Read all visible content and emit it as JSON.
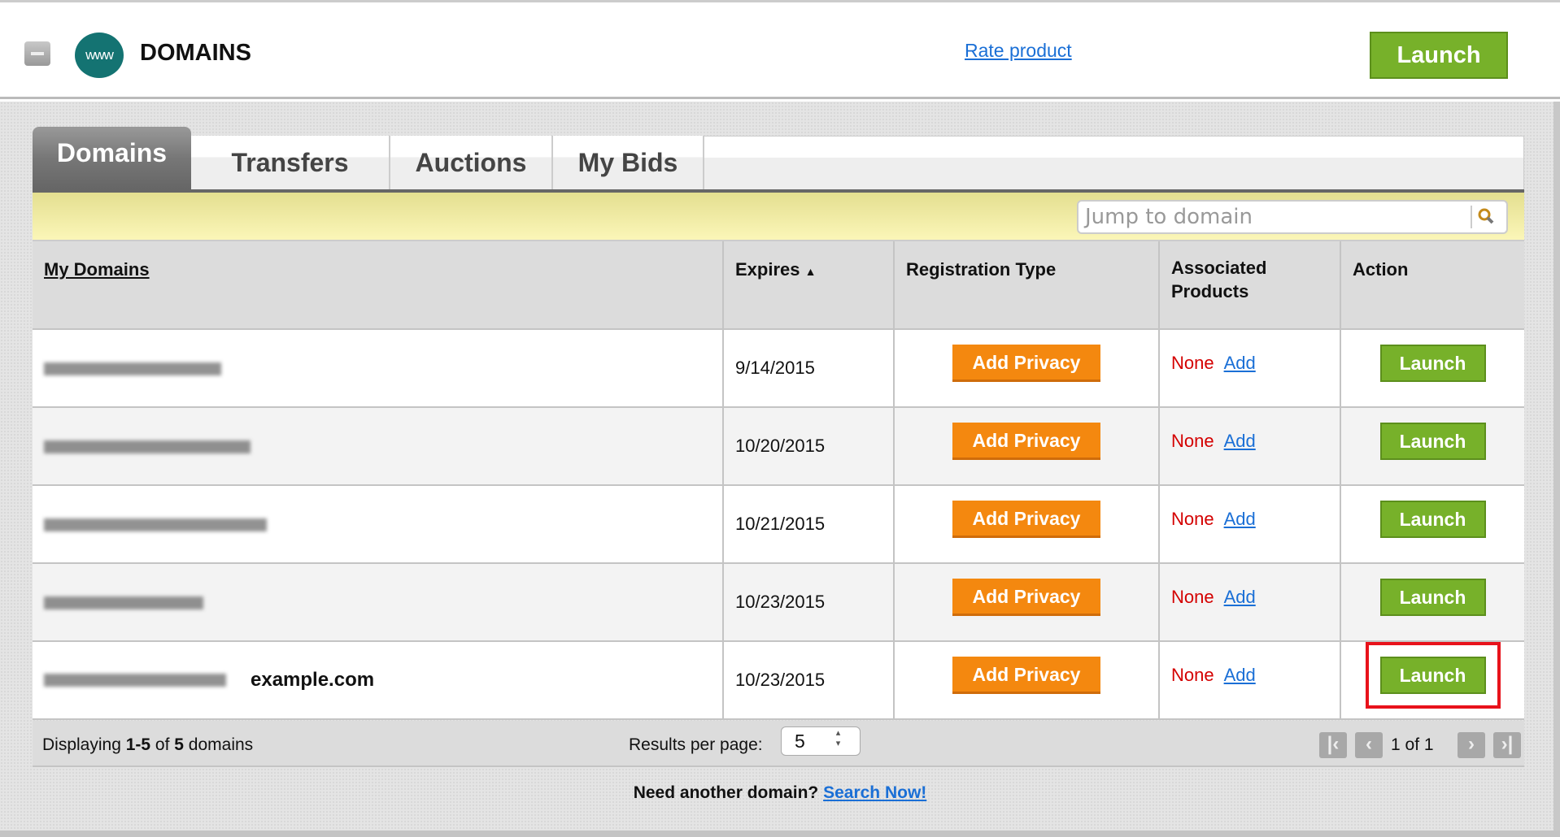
{
  "header": {
    "title": "DOMAINS",
    "logo_text": "www",
    "rate_link": "Rate product",
    "launch": "Launch"
  },
  "tabs": [
    {
      "label": "Domains",
      "active": true
    },
    {
      "label": "Transfers"
    },
    {
      "label": "Auctions"
    },
    {
      "label": "My Bids"
    }
  ],
  "search": {
    "placeholder": "Jump to domain"
  },
  "table": {
    "columns": [
      "My Domains",
      "Expires",
      "Registration Type",
      "Associated Products",
      "Action"
    ],
    "sort_indicator": "▲",
    "rows": [
      {
        "domain": "",
        "expires": "9/14/2015",
        "registration": "Add Privacy",
        "products": "None",
        "add": "Add",
        "action": "Launch"
      },
      {
        "domain": "",
        "expires": "10/20/2015",
        "registration": "Add Privacy",
        "products": "None",
        "add": "Add",
        "action": "Launch"
      },
      {
        "domain": "",
        "expires": "10/21/2015",
        "registration": "Add Privacy",
        "products": "None",
        "add": "Add",
        "action": "Launch"
      },
      {
        "domain": "",
        "expires": "10/23/2015",
        "registration": "Add Privacy",
        "products": "None",
        "add": "Add",
        "action": "Launch"
      },
      {
        "domain": "",
        "label": "example.com",
        "expires": "10/23/2015",
        "registration": "Add Privacy",
        "products": "None",
        "add": "Add",
        "action": "Launch"
      }
    ]
  },
  "footer": {
    "displaying_prefix": "Displaying ",
    "range": "1-5",
    "of": " of ",
    "total": "5",
    "suffix": " domains",
    "results_label": "Results per page:",
    "per_page": "5",
    "page_info": "1 of 1"
  },
  "bottom": {
    "prompt": "Need another domain?",
    "link": "Search Now!"
  },
  "colors": {
    "accent_green": "#77b12a",
    "privacy_orange": "#f4880f",
    "none_red": "#d40000",
    "link_blue": "#1a6fd6",
    "highlight_red": "#e8121b"
  }
}
